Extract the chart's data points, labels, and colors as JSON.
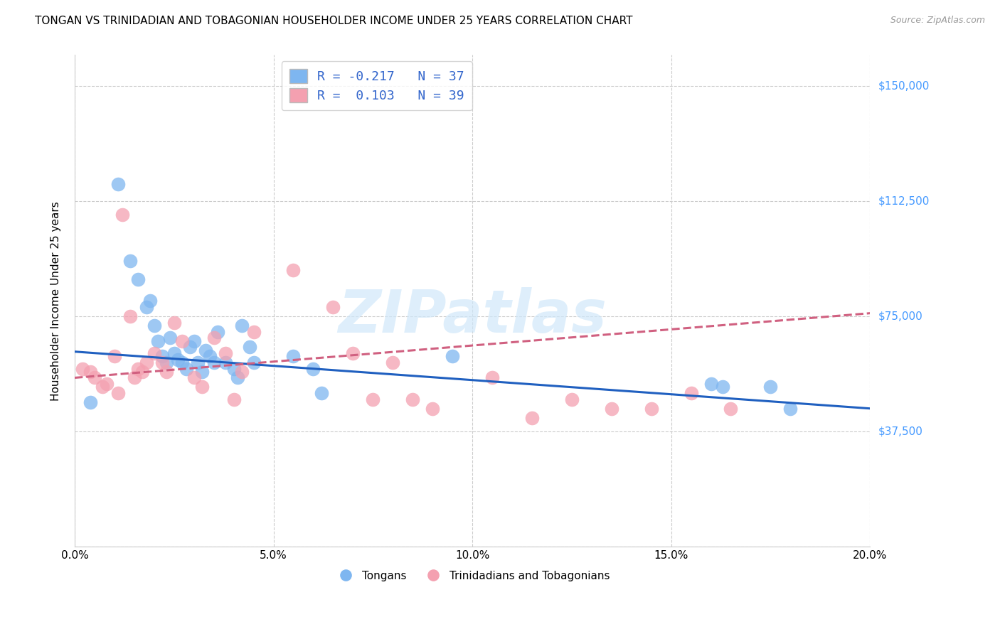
{
  "title": "TONGAN VS TRINIDADIAN AND TOBAGONIAN HOUSEHOLDER INCOME UNDER 25 YEARS CORRELATION CHART",
  "source": "Source: ZipAtlas.com",
  "ylabel": "Householder Income Under 25 years",
  "xlabel_ticks": [
    "0.0%",
    "5.0%",
    "10.0%",
    "15.0%",
    "20.0%"
  ],
  "xlabel_vals": [
    0.0,
    5.0,
    10.0,
    15.0,
    20.0
  ],
  "ytick_vals": [
    0,
    37500,
    75000,
    112500,
    150000
  ],
  "ytick_labels": [
    "",
    "$37,500",
    "$75,000",
    "$112,500",
    "$150,000"
  ],
  "xlim": [
    0.0,
    20.0
  ],
  "ylim": [
    0,
    160000
  ],
  "blue_color": "#7EB6F0",
  "pink_color": "#F4A0B0",
  "blue_line_color": "#2060C0",
  "pink_line_color": "#D06080",
  "legend1_label": "R = -0.217   N = 37",
  "legend2_label": "R =  0.103   N = 39",
  "legend_tongans": "Tongans",
  "legend_trinidadians": "Trinidadians and Tobagonians",
  "watermark": "ZIPatlas",
  "background_color": "#ffffff",
  "grid_color": "#cccccc",
  "tongan_x": [
    0.4,
    1.1,
    1.4,
    1.6,
    1.8,
    1.9,
    2.0,
    2.1,
    2.2,
    2.3,
    2.4,
    2.5,
    2.6,
    2.7,
    2.8,
    2.9,
    3.0,
    3.1,
    3.2,
    3.3,
    3.4,
    3.5,
    3.6,
    3.8,
    4.0,
    4.1,
    4.2,
    4.4,
    4.5,
    5.5,
    6.0,
    6.2,
    9.5,
    16.0,
    16.3,
    17.5,
    18.0
  ],
  "tongan_y": [
    47000,
    118000,
    93000,
    87000,
    78000,
    80000,
    72000,
    67000,
    62000,
    60000,
    68000,
    63000,
    61000,
    60000,
    58000,
    65000,
    67000,
    60000,
    57000,
    64000,
    62000,
    60000,
    70000,
    60000,
    58000,
    55000,
    72000,
    65000,
    60000,
    62000,
    58000,
    50000,
    62000,
    53000,
    52000,
    52000,
    45000
  ],
  "trinidadian_x": [
    0.2,
    0.4,
    0.5,
    0.7,
    0.8,
    1.0,
    1.1,
    1.2,
    1.4,
    1.5,
    1.6,
    1.7,
    1.8,
    2.0,
    2.2,
    2.3,
    2.5,
    2.7,
    3.0,
    3.2,
    3.5,
    3.8,
    4.0,
    4.2,
    4.5,
    5.5,
    6.5,
    7.0,
    7.5,
    8.0,
    8.5,
    9.0,
    10.5,
    11.5,
    12.5,
    13.5,
    14.5,
    15.5,
    16.5
  ],
  "trinidadian_y": [
    58000,
    57000,
    55000,
    52000,
    53000,
    62000,
    50000,
    108000,
    75000,
    55000,
    58000,
    57000,
    60000,
    63000,
    60000,
    57000,
    73000,
    67000,
    55000,
    52000,
    68000,
    63000,
    48000,
    57000,
    70000,
    90000,
    78000,
    63000,
    48000,
    60000,
    48000,
    45000,
    55000,
    42000,
    48000,
    45000,
    45000,
    50000,
    45000
  ],
  "blue_trend_x0": 0.0,
  "blue_trend_y0": 63500,
  "blue_trend_x1": 20.0,
  "blue_trend_y1": 45000,
  "pink_trend_x0": 0.0,
  "pink_trend_y0": 55000,
  "pink_trend_x1": 20.0,
  "pink_trend_y1": 76000
}
